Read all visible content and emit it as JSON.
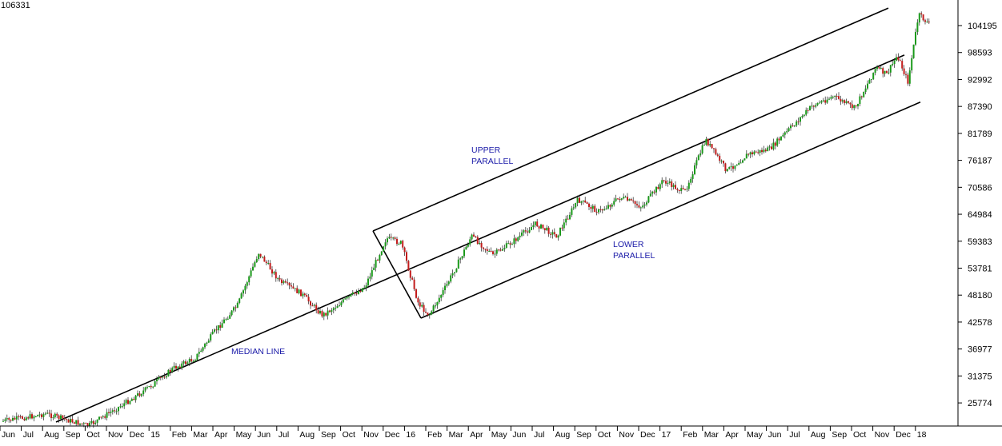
{
  "chart_data": {
    "type": "line",
    "title": "",
    "last_value_label": "106331",
    "colors": {
      "up": "#1a9a1a",
      "down": "#c21c1c",
      "trendline": "#000000",
      "annotation": "#1a1aa8",
      "axis": "#000000",
      "background": "#ffffff"
    },
    "ylim": [
      20000,
      110000
    ],
    "y_ticks": [
      104195,
      98593,
      92992,
      87390,
      81789,
      76187,
      70586,
      64984,
      59383,
      53781,
      48180,
      42578,
      36977,
      31375,
      25774
    ],
    "x_ticks": [
      "Jun",
      "Jul",
      "Aug",
      "Sep",
      "Oct",
      "Nov",
      "Dec",
      "15",
      "Feb",
      "Mar",
      "Apr",
      "May",
      "Jun",
      "Jul",
      "Aug",
      "Sep",
      "Oct",
      "Nov",
      "Dec",
      "16",
      "Feb",
      "Mar",
      "Apr",
      "May",
      "Jun",
      "Jul",
      "Aug",
      "Sep",
      "Oct",
      "Nov",
      "Dec",
      "17",
      "Feb",
      "Mar",
      "Apr",
      "May",
      "Jun",
      "Jul",
      "Aug",
      "Sep",
      "Oct",
      "Nov",
      "Dec",
      "18"
    ],
    "series": [
      {
        "x": [
          0,
          2,
          4,
          6,
          7,
          8,
          9,
          10,
          11,
          12,
          13,
          14,
          15,
          16,
          17,
          18,
          18.7,
          19.5,
          20,
          20.8,
          21.5,
          22,
          23,
          24,
          25,
          26,
          27,
          28,
          29,
          30,
          31,
          32,
          33,
          34,
          35,
          36,
          37,
          38,
          39,
          40,
          41,
          41.5,
          42,
          42.5,
          43,
          43.5
        ],
        "values": [
          22000,
          23500,
          21000,
          26500,
          29500,
          33000,
          35000,
          41000,
          46000,
          57000,
          51000,
          48500,
          44000,
          47000,
          50000,
          60000,
          59000,
          46500,
          44000,
          50000,
          56000,
          60500,
          56500,
          59500,
          63000,
          60500,
          68000,
          65500,
          68500,
          66500,
          72000,
          69500,
          80500,
          74000,
          77500,
          78500,
          83000,
          87500,
          89500,
          87000,
          95500,
          94000,
          98000,
          92500,
          106500,
          104500
        ]
      }
    ],
    "annotations": [
      {
        "id": "upper",
        "lines": [
          "UPPER",
          "PARALLEL"
        ]
      },
      {
        "id": "lower",
        "lines": [
          "LOWER",
          "PARALLEL"
        ]
      },
      {
        "id": "median",
        "lines": [
          "MEDIAN LINE"
        ]
      }
    ]
  }
}
